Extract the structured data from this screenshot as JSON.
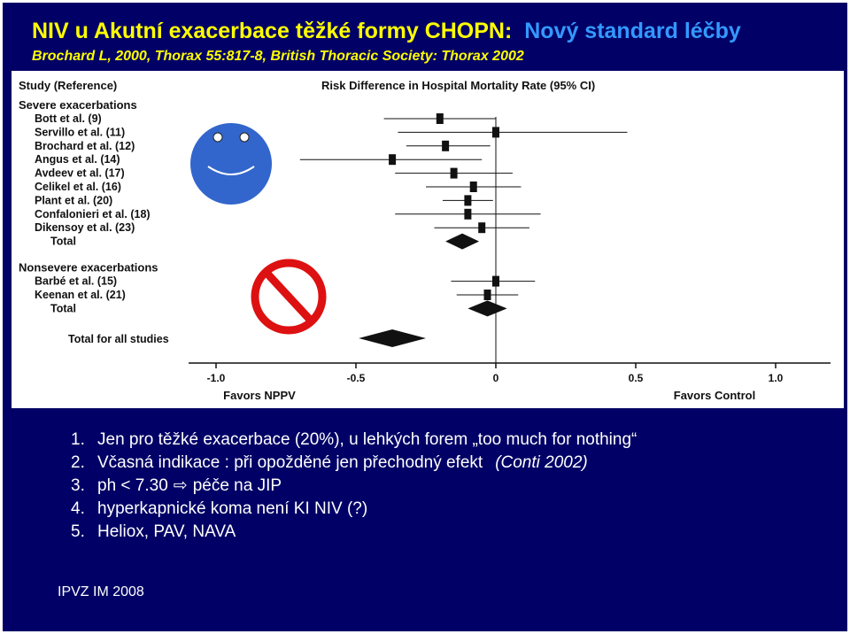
{
  "slide": {
    "title_main": "NIV u Akutní exacerbace těžké formy CHOPN:",
    "title_accent": "Nový standard léčby",
    "subtitle": "Brochard L, 2000, Thorax 55:817-8, British Thoracic Society: Thorax 2002",
    "footer": "IPVZ IM 2008",
    "colors": {
      "background": "#000066",
      "title": "#ffff00",
      "accent": "#3399ff",
      "text": "#ffffff",
      "smiley": "#3366cc",
      "prohibition": "#dd1111"
    },
    "notes": [
      {
        "num": "1.",
        "text": "Jen pro těžké exacerbace (20%), u lehkých forem „too much for nothing“"
      },
      {
        "num": "2.",
        "text": "Včasná indikace : při opožděné jen  přechodný efekt",
        "italic": "(Conti 2002)"
      },
      {
        "num": "3.",
        "text": "ph < 7.30",
        "arrow": "⇨",
        "text2": "péče na JIP"
      },
      {
        "num": "4.",
        "text": "hyperkapnické koma není KI NIV (?)"
      },
      {
        "num": "5.",
        "text": "Heliox, PAV, NAVA"
      }
    ],
    "icons": {
      "smiley": "smiley-face-icon",
      "prohibition": "prohibition-sign-icon",
      "arrow": "outline-arrow-right-icon"
    }
  },
  "chart_data": {
    "type": "forest",
    "title": "Risk Difference in Hospital Mortality Rate (95% CI)",
    "column_header": "Study (Reference)",
    "xlim": [
      -1.0,
      1.0
    ],
    "xticks": [
      "-1.0",
      "-0.5",
      "0",
      "0.5",
      "1.0"
    ],
    "xlabel_left": "Favors NPPV",
    "xlabel_right": "Favors Control",
    "groups": [
      {
        "name": "Severe exacerbations",
        "studies": [
          {
            "label": "Bott et al. (9)",
            "est": -0.2,
            "lo": -0.4,
            "hi": 0.0
          },
          {
            "label": "Servillo et al. (11)",
            "est": 0.0,
            "lo": -0.35,
            "hi": 0.47
          },
          {
            "label": "Brochard et al. (12)",
            "est": -0.18,
            "lo": -0.32,
            "hi": -0.02
          },
          {
            "label": "Angus et al. (14)",
            "est": -0.37,
            "lo": -0.7,
            "hi": -0.05
          },
          {
            "label": "Avdeev et al. (17)",
            "est": -0.15,
            "lo": -0.36,
            "hi": 0.06
          },
          {
            "label": "Celikel et al. (16)",
            "est": -0.08,
            "lo": -0.25,
            "hi": 0.09
          },
          {
            "label": "Plant et al. (20)",
            "est": -0.1,
            "lo": -0.19,
            "hi": -0.01
          },
          {
            "label": "Confalonieri et al. (18)",
            "est": -0.1,
            "lo": -0.36,
            "hi": 0.16
          },
          {
            "label": "Dikensoy et al. (23)",
            "est": -0.05,
            "lo": -0.22,
            "hi": 0.12
          }
        ],
        "total": {
          "label": "Total",
          "est": -0.12,
          "lo": -0.18,
          "hi": -0.06
        }
      },
      {
        "name": "Nonsevere exacerbations",
        "studies": [
          {
            "label": "Barbé et al. (15)",
            "est": 0.0,
            "lo": -0.16,
            "hi": 0.14
          },
          {
            "label": "Keenan et al. (21)",
            "est": -0.03,
            "lo": -0.14,
            "hi": 0.08
          }
        ],
        "total": {
          "label": "Total",
          "est": -0.03,
          "lo": -0.1,
          "hi": 0.04
        }
      }
    ],
    "overall": {
      "label": "Total for all studies",
      "est": -0.37,
      "lo": -0.49,
      "hi": -0.25
    }
  }
}
